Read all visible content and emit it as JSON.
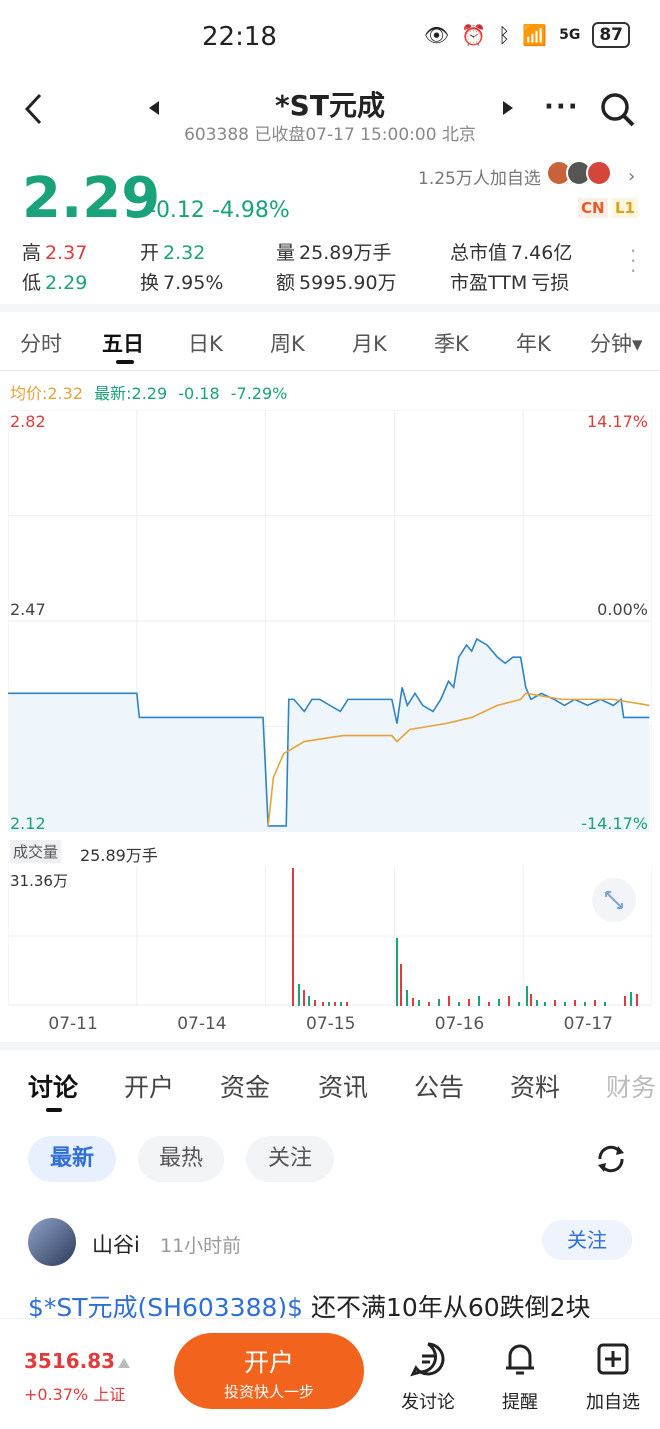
{
  "status": {
    "time": "22:18",
    "battery": "87",
    "network": "5G"
  },
  "header": {
    "title": "*ST元成",
    "subtitle": "603388 已收盘07-17 15:00:00 北京"
  },
  "watch": {
    "count": "1.25万人加自选",
    "badge_cn": "CN",
    "badge_l1": "L1"
  },
  "quote": {
    "price": "2.29",
    "change": "-0.12",
    "pct": "-4.98%",
    "high_label": "高",
    "high": "2.37",
    "open_label": "开",
    "open": "2.32",
    "vol_label": "量",
    "vol": "25.89万手",
    "mcap_label": "总市值",
    "mcap": "7.46亿",
    "low_label": "低",
    "low": "2.29",
    "turn_label": "换",
    "turn": "7.95%",
    "amt_label": "额",
    "amt": "5995.90万",
    "pe_label": "市盈TTM",
    "pe": "亏损"
  },
  "chart_tabs": [
    "分时",
    "五日",
    "日K",
    "周K",
    "月K",
    "季K",
    "年K",
    "分钟▾"
  ],
  "legend": {
    "avg": "均价:2.32",
    "latest": "最新:2.29",
    "chg": "-0.18",
    "pct": "-7.29%"
  },
  "axis": {
    "top": "2.82",
    "mid": "2.47",
    "bottom": "2.12",
    "top_pct": "14.17%",
    "mid_pct": "0.00%",
    "bottom_pct": "-14.17%"
  },
  "volume": {
    "label": "成交量",
    "value": "25.89万手",
    "max": "31.36万"
  },
  "chart_data": {
    "type": "line",
    "x": [
      "07-11",
      "07-14",
      "07-15",
      "07-16",
      "07-17"
    ],
    "ylim": [
      2.12,
      2.82
    ],
    "series": [
      {
        "values": [
          2.35,
          2.31,
          2.39,
          2.42,
          2.32
        ]
      },
      {
        "values": [
          2.35,
          2.31,
          2.3,
          2.34,
          2.32
        ]
      }
    ]
  },
  "bottom_tabs": [
    "讨论",
    "开户",
    "资金",
    "资讯",
    "公告",
    "资料",
    "财务"
  ],
  "filters": [
    "最新",
    "最热",
    "关注"
  ],
  "post": {
    "user": "山谷i",
    "time": "11小时前",
    "follow": "关注",
    "link": "$*ST元成(SH603388)$",
    "text": " 还不满10年从60跌倒2块"
  },
  "index": {
    "value": "3516.83",
    "chg": "+0.37%",
    "name": "上证"
  },
  "cta": {
    "main": "开户",
    "sub": "投资快人一步"
  },
  "actions": [
    "发讨论",
    "提醒",
    "加自选"
  ],
  "colors": {
    "up": "#e23b3b",
    "down": "#1aa37a",
    "price_line": "#2b84c6",
    "avg_line": "#e8a23a",
    "cta": "#f2641e"
  }
}
